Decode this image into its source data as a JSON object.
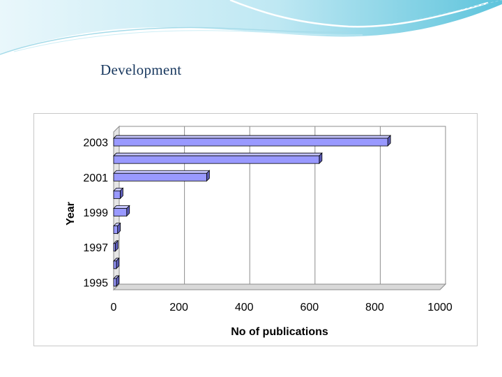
{
  "slide": {
    "title": "Development"
  },
  "colors": {
    "bar_face": "#9999ff",
    "bar_top": "#c6c6ff",
    "bar_side": "#5c5cb8",
    "header_wave": "#5ec4dc",
    "title": "#17375e"
  },
  "chart_data": {
    "type": "bar",
    "orientation": "horizontal",
    "categories": [
      "1995",
      "1996",
      "1997",
      "1998",
      "1999",
      "2000",
      "2001",
      "2002",
      "2003"
    ],
    "category_labels": [
      "1995",
      "",
      "1997",
      "",
      "1999",
      "",
      "2001",
      "",
      "2003"
    ],
    "values": [
      8,
      8,
      5,
      12,
      40,
      20,
      285,
      630,
      840
    ],
    "xlabel": "No of publications",
    "ylabel": "Year",
    "xlim": [
      0,
      1000
    ],
    "xticks": [
      0,
      200,
      400,
      600,
      800,
      1000
    ],
    "grid": "vertical",
    "legend": "none"
  }
}
